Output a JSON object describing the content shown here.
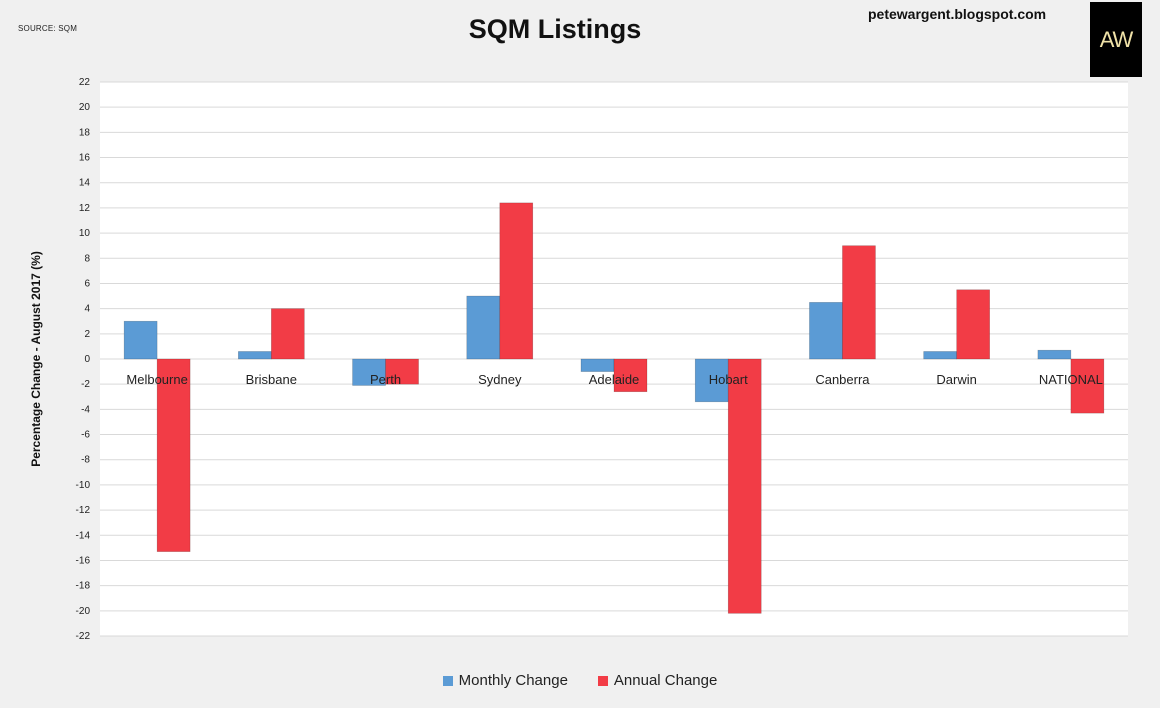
{
  "source_label": "SOURCE: SQM",
  "blog_url": "petewargent.blogspot.com",
  "logo_text": "AW",
  "colors": {
    "monthly": "#5b9bd5",
    "annual": "#f23c46",
    "plot_bg": "#ffffff",
    "page_bg": "#f0f0f0",
    "grid": "#d9d9d9"
  },
  "chart_data": {
    "type": "bar",
    "title": "SQM Listings",
    "ylabel": "Percentage Change - August 2017 (%)",
    "xlabel": "",
    "ylim": [
      -22,
      22
    ],
    "yticks": [
      22,
      20,
      18,
      16,
      14,
      12,
      10,
      8,
      6,
      4,
      2,
      0,
      -2,
      -4,
      -6,
      -8,
      -10,
      -12,
      -14,
      -16,
      -18,
      -20,
      -22
    ],
    "grid": true,
    "legend_position": "bottom",
    "categories": [
      "Melbourne",
      "Brisbane",
      "Perth",
      "Sydney",
      "Adelaide",
      "Hobart",
      "Canberra",
      "Darwin",
      "NATIONAL"
    ],
    "series": [
      {
        "name": "Monthly Change",
        "values": [
          3.0,
          0.6,
          -2.1,
          5.0,
          -1.0,
          -3.4,
          4.5,
          0.6,
          0.7
        ]
      },
      {
        "name": "Annual Change",
        "values": [
          -15.3,
          4.0,
          -2.0,
          12.4,
          -2.6,
          -20.2,
          9.0,
          5.5,
          -4.3
        ]
      }
    ]
  }
}
